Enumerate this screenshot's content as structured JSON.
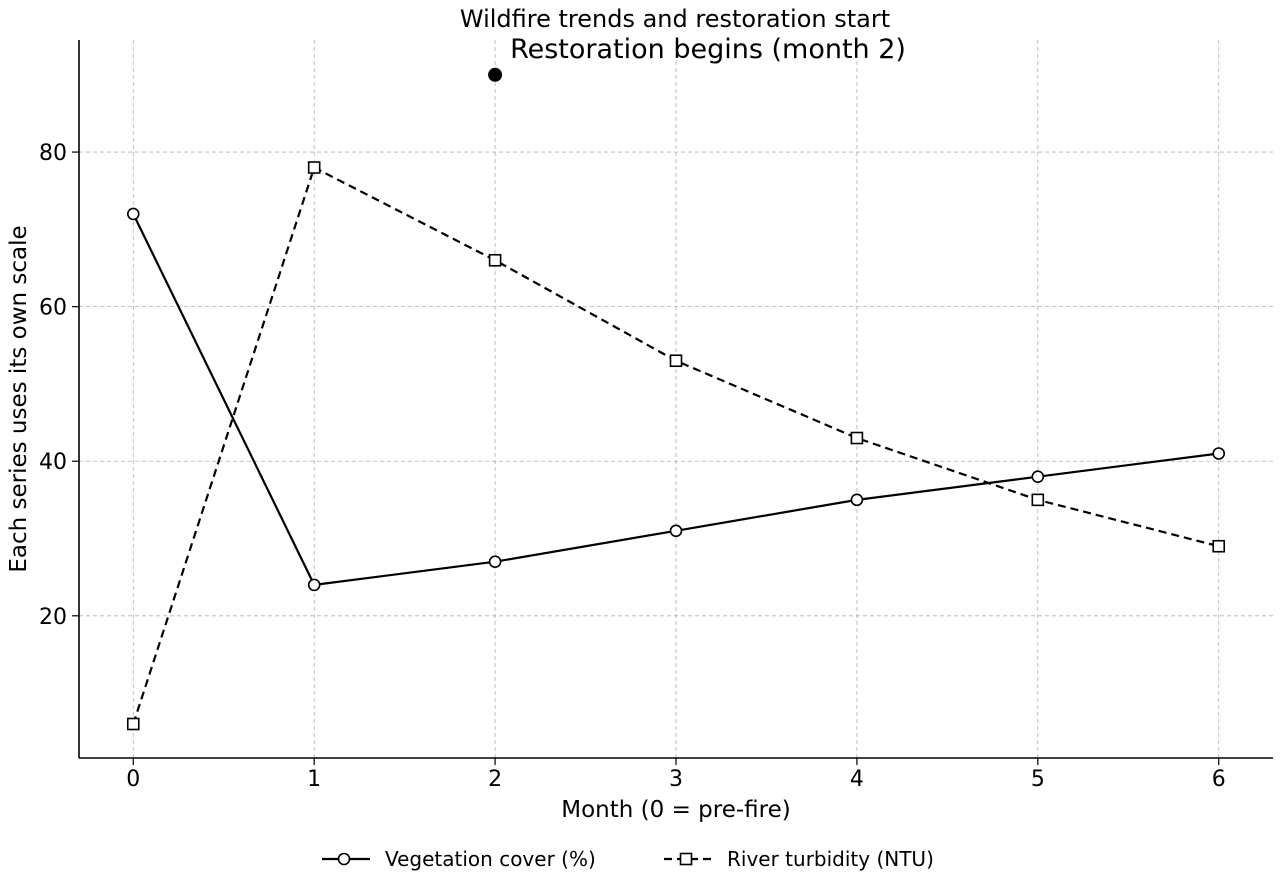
{
  "chart_data": {
    "type": "line",
    "title": "Wildfire trends and restoration start",
    "xlabel": "Month (0 = pre-fire)",
    "ylabel": "Each series uses its own scale",
    "x": [
      0,
      1,
      2,
      3,
      4,
      5,
      6
    ],
    "x_ticks": [
      "0",
      "1",
      "2",
      "3",
      "4",
      "5",
      "6"
    ],
    "y_ticks": [
      "20",
      "40",
      "60",
      "80"
    ],
    "xlim": [
      -0.3,
      6.3
    ],
    "ylim": [
      1.6,
      94.5
    ],
    "grid": true,
    "legend_position": "bottom-center",
    "series": [
      {
        "name": "Vegetation cover (%)",
        "values": [
          72,
          24,
          27,
          31,
          35,
          38,
          41
        ],
        "line_style": "solid",
        "marker": "circle",
        "color": "#000000"
      },
      {
        "name": "River turbidity (NTU)",
        "values": [
          6,
          78,
          66,
          53,
          43,
          35,
          29
        ],
        "line_style": "dashed",
        "marker": "square",
        "color": "#000000"
      }
    ],
    "annotations": [
      {
        "text": "Restoration begins (month 2)",
        "x": 2,
        "y": 90
      }
    ]
  }
}
